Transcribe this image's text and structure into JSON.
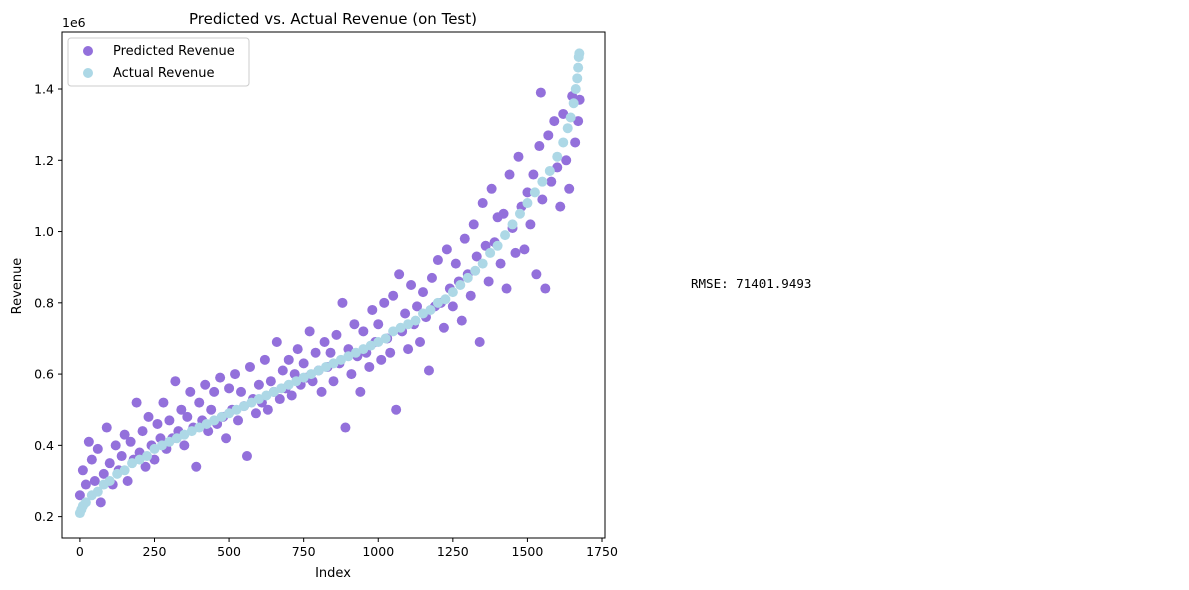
{
  "chart_data": {
    "type": "scatter",
    "title": "Predicted vs. Actual Revenue (on Test)",
    "xlabel": "Index",
    "ylabel": "Revenue",
    "y_offset_label": "1e6",
    "xlim": [
      -60,
      1760
    ],
    "ylim": [
      0.14,
      1.56
    ],
    "y_unit_multiplier": 1000000,
    "x_ticks": [
      0,
      250,
      500,
      750,
      1000,
      1250,
      1500,
      1750
    ],
    "x_tick_labels": [
      "0",
      "250",
      "500",
      "750",
      "1000",
      "1250",
      "1500",
      "1750"
    ],
    "y_ticks": [
      0.2,
      0.4,
      0.6,
      0.8,
      1.0,
      1.2,
      1.4
    ],
    "y_tick_labels": [
      "0.2",
      "0.4",
      "0.6",
      "0.8",
      "1.0",
      "1.2",
      "1.4"
    ],
    "grid": false,
    "legend_position": "top-left",
    "series": [
      {
        "name": "Predicted Revenue",
        "color": "#9370db",
        "points": [
          [
            0,
            0.26
          ],
          [
            10,
            0.33
          ],
          [
            20,
            0.29
          ],
          [
            30,
            0.41
          ],
          [
            40,
            0.36
          ],
          [
            50,
            0.3
          ],
          [
            60,
            0.39
          ],
          [
            70,
            0.24
          ],
          [
            80,
            0.32
          ],
          [
            90,
            0.45
          ],
          [
            100,
            0.35
          ],
          [
            110,
            0.29
          ],
          [
            120,
            0.4
          ],
          [
            130,
            0.33
          ],
          [
            140,
            0.37
          ],
          [
            150,
            0.43
          ],
          [
            160,
            0.3
          ],
          [
            170,
            0.41
          ],
          [
            180,
            0.36
          ],
          [
            190,
            0.52
          ],
          [
            200,
            0.38
          ],
          [
            210,
            0.44
          ],
          [
            220,
            0.34
          ],
          [
            230,
            0.48
          ],
          [
            240,
            0.4
          ],
          [
            250,
            0.36
          ],
          [
            260,
            0.46
          ],
          [
            270,
            0.42
          ],
          [
            280,
            0.52
          ],
          [
            290,
            0.39
          ],
          [
            300,
            0.47
          ],
          [
            310,
            0.42
          ],
          [
            320,
            0.58
          ],
          [
            330,
            0.44
          ],
          [
            340,
            0.5
          ],
          [
            350,
            0.4
          ],
          [
            360,
            0.48
          ],
          [
            370,
            0.55
          ],
          [
            380,
            0.45
          ],
          [
            390,
            0.34
          ],
          [
            400,
            0.52
          ],
          [
            410,
            0.47
          ],
          [
            420,
            0.57
          ],
          [
            430,
            0.44
          ],
          [
            440,
            0.5
          ],
          [
            450,
            0.55
          ],
          [
            460,
            0.46
          ],
          [
            470,
            0.59
          ],
          [
            480,
            0.48
          ],
          [
            490,
            0.42
          ],
          [
            500,
            0.56
          ],
          [
            510,
            0.5
          ],
          [
            520,
            0.6
          ],
          [
            530,
            0.47
          ],
          [
            540,
            0.55
          ],
          [
            550,
            0.51
          ],
          [
            560,
            0.37
          ],
          [
            570,
            0.62
          ],
          [
            580,
            0.53
          ],
          [
            590,
            0.49
          ],
          [
            600,
            0.57
          ],
          [
            610,
            0.52
          ],
          [
            620,
            0.64
          ],
          [
            630,
            0.5
          ],
          [
            640,
            0.58
          ],
          [
            650,
            0.55
          ],
          [
            660,
            0.69
          ],
          [
            670,
            0.53
          ],
          [
            680,
            0.61
          ],
          [
            690,
            0.56
          ],
          [
            700,
            0.64
          ],
          [
            710,
            0.54
          ],
          [
            720,
            0.6
          ],
          [
            730,
            0.67
          ],
          [
            740,
            0.57
          ],
          [
            750,
            0.63
          ],
          [
            760,
            0.59
          ],
          [
            770,
            0.72
          ],
          [
            780,
            0.58
          ],
          [
            790,
            0.66
          ],
          [
            800,
            0.61
          ],
          [
            810,
            0.55
          ],
          [
            820,
            0.69
          ],
          [
            830,
            0.62
          ],
          [
            840,
            0.66
          ],
          [
            850,
            0.58
          ],
          [
            860,
            0.71
          ],
          [
            870,
            0.63
          ],
          [
            880,
            0.8
          ],
          [
            890,
            0.45
          ],
          [
            900,
            0.67
          ],
          [
            910,
            0.6
          ],
          [
            920,
            0.74
          ],
          [
            930,
            0.65
          ],
          [
            940,
            0.55
          ],
          [
            950,
            0.72
          ],
          [
            960,
            0.66
          ],
          [
            970,
            0.62
          ],
          [
            980,
            0.78
          ],
          [
            990,
            0.69
          ],
          [
            1000,
            0.74
          ],
          [
            1010,
            0.64
          ],
          [
            1020,
            0.8
          ],
          [
            1030,
            0.7
          ],
          [
            1040,
            0.66
          ],
          [
            1050,
            0.82
          ],
          [
            1060,
            0.5
          ],
          [
            1070,
            0.88
          ],
          [
            1080,
            0.72
          ],
          [
            1090,
            0.77
          ],
          [
            1100,
            0.67
          ],
          [
            1110,
            0.85
          ],
          [
            1120,
            0.74
          ],
          [
            1130,
            0.79
          ],
          [
            1140,
            0.69
          ],
          [
            1150,
            0.83
          ],
          [
            1160,
            0.76
          ],
          [
            1170,
            0.61
          ],
          [
            1180,
            0.87
          ],
          [
            1190,
            0.79
          ],
          [
            1200,
            0.92
          ],
          [
            1210,
            0.8
          ],
          [
            1220,
            0.73
          ],
          [
            1230,
            0.95
          ],
          [
            1240,
            0.84
          ],
          [
            1250,
            0.79
          ],
          [
            1260,
            0.91
          ],
          [
            1270,
            0.86
          ],
          [
            1280,
            0.75
          ],
          [
            1290,
            0.98
          ],
          [
            1300,
            0.88
          ],
          [
            1310,
            0.82
          ],
          [
            1320,
            1.02
          ],
          [
            1330,
            0.93
          ],
          [
            1340,
            0.69
          ],
          [
            1350,
            1.08
          ],
          [
            1360,
            0.96
          ],
          [
            1370,
            0.86
          ],
          [
            1380,
            1.12
          ],
          [
            1390,
            0.97
          ],
          [
            1400,
            1.04
          ],
          [
            1410,
            0.91
          ],
          [
            1420,
            1.05
          ],
          [
            1430,
            0.84
          ],
          [
            1440,
            1.16
          ],
          [
            1450,
            1.01
          ],
          [
            1460,
            0.94
          ],
          [
            1470,
            1.21
          ],
          [
            1480,
            1.07
          ],
          [
            1490,
            0.95
          ],
          [
            1500,
            1.11
          ],
          [
            1510,
            1.02
          ],
          [
            1520,
            1.16
          ],
          [
            1530,
            0.88
          ],
          [
            1540,
            1.24
          ],
          [
            1550,
            1.09
          ],
          [
            1560,
            0.84
          ],
          [
            1570,
            1.27
          ],
          [
            1580,
            1.14
          ],
          [
            1590,
            1.31
          ],
          [
            1600,
            1.18
          ],
          [
            1610,
            1.07
          ],
          [
            1620,
            1.33
          ],
          [
            1630,
            1.2
          ],
          [
            1640,
            1.12
          ],
          [
            1650,
            1.38
          ],
          [
            1660,
            1.25
          ],
          [
            1670,
            1.31
          ],
          [
            1675,
            1.37
          ],
          [
            1545,
            1.39
          ]
        ]
      },
      {
        "name": "Actual Revenue",
        "color": "#add8e6",
        "points": [
          [
            0,
            0.21
          ],
          [
            5,
            0.22
          ],
          [
            10,
            0.23
          ],
          [
            20,
            0.24
          ],
          [
            40,
            0.26
          ],
          [
            60,
            0.27
          ],
          [
            80,
            0.29
          ],
          [
            100,
            0.3
          ],
          [
            125,
            0.32
          ],
          [
            150,
            0.33
          ],
          [
            175,
            0.35
          ],
          [
            200,
            0.36
          ],
          [
            225,
            0.37
          ],
          [
            250,
            0.39
          ],
          [
            275,
            0.4
          ],
          [
            300,
            0.41
          ],
          [
            325,
            0.42
          ],
          [
            350,
            0.43
          ],
          [
            375,
            0.44
          ],
          [
            400,
            0.45
          ],
          [
            425,
            0.46
          ],
          [
            450,
            0.47
          ],
          [
            475,
            0.48
          ],
          [
            500,
            0.49
          ],
          [
            525,
            0.5
          ],
          [
            550,
            0.51
          ],
          [
            575,
            0.52
          ],
          [
            600,
            0.53
          ],
          [
            625,
            0.54
          ],
          [
            650,
            0.55
          ],
          [
            675,
            0.56
          ],
          [
            700,
            0.57
          ],
          [
            725,
            0.58
          ],
          [
            750,
            0.59
          ],
          [
            775,
            0.6
          ],
          [
            800,
            0.61
          ],
          [
            825,
            0.62
          ],
          [
            850,
            0.63
          ],
          [
            875,
            0.64
          ],
          [
            900,
            0.65
          ],
          [
            925,
            0.66
          ],
          [
            950,
            0.67
          ],
          [
            975,
            0.68
          ],
          [
            1000,
            0.69
          ],
          [
            1025,
            0.7
          ],
          [
            1050,
            0.72
          ],
          [
            1075,
            0.73
          ],
          [
            1100,
            0.74
          ],
          [
            1125,
            0.75
          ],
          [
            1150,
            0.77
          ],
          [
            1175,
            0.78
          ],
          [
            1200,
            0.8
          ],
          [
            1225,
            0.81
          ],
          [
            1250,
            0.83
          ],
          [
            1275,
            0.85
          ],
          [
            1300,
            0.87
          ],
          [
            1325,
            0.89
          ],
          [
            1350,
            0.91
          ],
          [
            1375,
            0.94
          ],
          [
            1400,
            0.96
          ],
          [
            1425,
            0.99
          ],
          [
            1450,
            1.02
          ],
          [
            1475,
            1.05
          ],
          [
            1500,
            1.08
          ],
          [
            1525,
            1.11
          ],
          [
            1550,
            1.14
          ],
          [
            1575,
            1.17
          ],
          [
            1600,
            1.21
          ],
          [
            1620,
            1.25
          ],
          [
            1635,
            1.29
          ],
          [
            1645,
            1.32
          ],
          [
            1655,
            1.36
          ],
          [
            1662,
            1.4
          ],
          [
            1667,
            1.43
          ],
          [
            1670,
            1.46
          ],
          [
            1672,
            1.49
          ],
          [
            1674,
            1.5
          ]
        ]
      }
    ]
  },
  "annotations": {
    "rmse": "RMSE: 71401.9493"
  }
}
